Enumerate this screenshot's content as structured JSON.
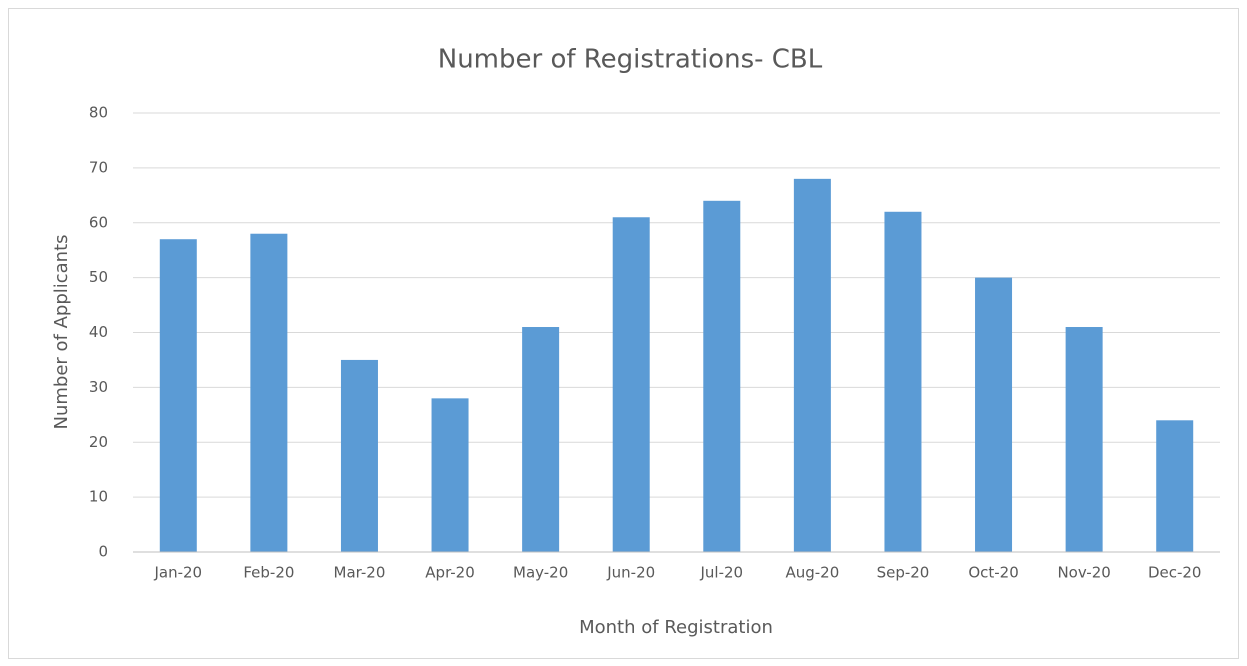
{
  "chart_data": {
    "type": "bar",
    "title": "Number of Registrations- CBL",
    "x_label": "Month of Registration",
    "y_label": "Number of Applicants",
    "categories": [
      "Jan-20",
      "Feb-20",
      "Mar-20",
      "Apr-20",
      "May-20",
      "Jun-20",
      "Jul-20",
      "Aug-20",
      "Sep-20",
      "Oct-20",
      "Nov-20",
      "Dec-20"
    ],
    "values": [
      57,
      58,
      35,
      28,
      41,
      61,
      64,
      68,
      62,
      50,
      41,
      24
    ],
    "color": "#5b9bd5",
    "ylim": [
      0,
      80
    ],
    "yticks": [
      0,
      10,
      20,
      30,
      40,
      50,
      60,
      70,
      80
    ],
    "grid": true
  }
}
